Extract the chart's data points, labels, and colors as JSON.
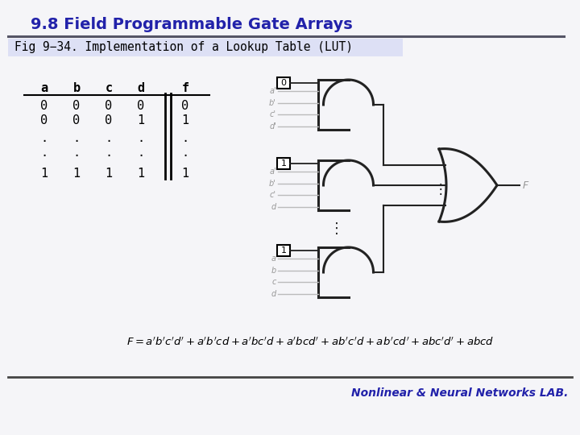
{
  "title": "9.8 Field Programmable Gate Arrays",
  "subtitle": "Fig 9−34. Implementation of a Lookup Table (LUT)",
  "title_color": "#2222aa",
  "subtitle_bg": "#dde0f5",
  "bg_color": "#f5f5f8",
  "table_headers": [
    "a",
    "b",
    "c",
    "d",
    "f"
  ],
  "table_rows": [
    [
      "0",
      "0",
      "0",
      "0",
      "0"
    ],
    [
      "0",
      "0",
      "0",
      "1",
      "1"
    ],
    [
      ".",
      ".",
      ".",
      ".",
      "."
    ],
    [
      ".",
      ".",
      ".",
      ".",
      "."
    ],
    [
      "1",
      "1",
      "1",
      "1",
      "1"
    ]
  ],
  "footer": "Nonlinear & Neural Networks LAB.",
  "footer_color": "#2222aa",
  "gate_color": "#222222",
  "label_color": "#999999",
  "mux_labels_top": [
    "a'",
    "b'",
    "c'",
    "d'"
  ],
  "mux_labels_mid": [
    "a'",
    "b'",
    "c'",
    "d"
  ],
  "mux_labels_bot": [
    "a",
    "b",
    "c",
    "d"
  ],
  "sel_top": "0",
  "sel_mid": "1",
  "sel_bot": "1"
}
